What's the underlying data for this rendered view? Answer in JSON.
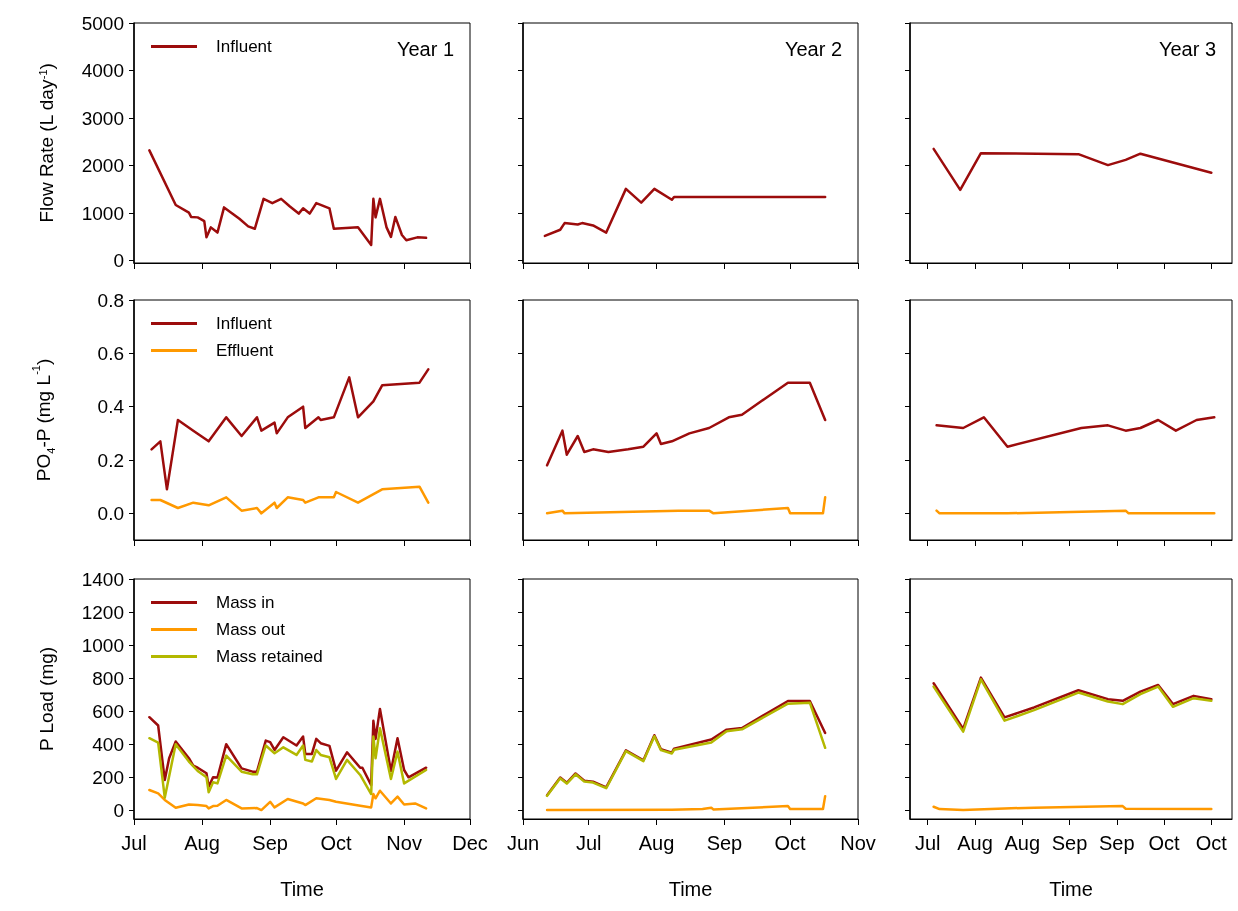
{
  "chart_data": [
    {
      "type": "line",
      "ylabel": "Flow Rate (L day$^{-1}$)",
      "annotations": [
        "Year 1"
      ],
      "legend": "top left",
      "marker": "none",
      "tick_labels": "y",
      "xlim": [
        "--07-01",
        "--12-01"
      ],
      "xticks": [
        {
          "value": "--07-01",
          "label": "Jul"
        },
        {
          "value": "--08-01",
          "label": "Aug"
        },
        {
          "value": "--09-01",
          "label": "Sep"
        },
        {
          "value": "--10-01",
          "label": "Oct"
        },
        {
          "value": "--11-01",
          "label": "Nov"
        },
        {
          "value": "--12-01",
          "label": "Dec"
        }
      ],
      "ylim": [
        -50,
        5000
      ],
      "yticks": [
        0,
        1000,
        2000,
        3000,
        4000,
        5000
      ],
      "series": [
        {
          "name": "Influent",
          "color": "#9c0c0c",
          "x": [
            "--07-08",
            "--07-20",
            "--07-26",
            "--07-27",
            "--07-30",
            "--08-02",
            "--08-03",
            "--08-05",
            "--08-08",
            "--08-11",
            "--08-18",
            "--08-22",
            "--08-25",
            "--08-29",
            "--09-02",
            "--09-06",
            "--09-10",
            "--09-14",
            "--09-16",
            "--09-19",
            "--09-22",
            "--09-28",
            "--09-30",
            "--10-11",
            "--10-17",
            "--10-18",
            "--10-19",
            "--10-21",
            "--10-24",
            "--10-26",
            "--10-28",
            "--10-31",
            "--11-02",
            "--11-07",
            "--11-11"
          ],
          "values": [
            2320,
            1170,
            1010,
            920,
            910,
            830,
            490,
            700,
            590,
            1120,
            880,
            720,
            670,
            1300,
            1210,
            1300,
            1140,
            990,
            1100,
            990,
            1210,
            1100,
            670,
            700,
            330,
            1300,
            910,
            1300,
            700,
            500,
            920,
            540,
            430,
            490,
            480
          ]
        }
      ]
    },
    {
      "type": "line",
      "annotations": [
        "Year 2"
      ],
      "marker": "none",
      "tick_labels": false,
      "xlim": [
        "--06-01",
        "--11-01"
      ],
      "xticks": [
        {
          "value": "--06-01",
          "label": "Jun"
        },
        {
          "value": "--07-01",
          "label": "Jul"
        },
        {
          "value": "--08-01",
          "label": "Aug"
        },
        {
          "value": "--09-01",
          "label": "Sep"
        },
        {
          "value": "--10-01",
          "label": "Oct"
        },
        {
          "value": "--11-01",
          "label": "Nov"
        }
      ],
      "ylim": [
        -50,
        5000
      ],
      "yticks": [
        0,
        1000,
        2000,
        3000,
        4000,
        5000
      ],
      "series": [
        {
          "color": "#9c0c0c",
          "x": [
            "--06-11",
            "--06-18",
            "--06-20",
            "--06-26",
            "--06-28",
            "--07-03",
            "--07-09",
            "--07-18",
            "--07-25",
            "--07-31",
            "--08-08",
            "--08-09",
            "--10-17"
          ],
          "values": [
            520,
            650,
            790,
            760,
            790,
            740,
            590,
            1510,
            1220,
            1510,
            1280,
            1340,
            1340
          ]
        }
      ]
    },
    {
      "type": "line",
      "annotations": [
        "Year 3"
      ],
      "marker": "none",
      "tick_labels": false,
      "xlim": [
        "--07-14",
        "--10-31"
      ],
      "xticks": [
        {
          "value": "--07-20",
          "label": "Jul"
        },
        {
          "value": "--08-05",
          "label": "Aug"
        },
        {
          "value": "--08-21",
          "label": "Aug"
        },
        {
          "value": "--09-06",
          "label": "Sep"
        },
        {
          "value": "--09-22",
          "label": "Sep"
        },
        {
          "value": "--10-08",
          "label": "Oct"
        },
        {
          "value": "--10-24",
          "label": "Oct"
        }
      ],
      "ylim": [
        -50,
        5000
      ],
      "yticks": [
        0,
        1000,
        2000,
        3000,
        4000,
        5000
      ],
      "series": [
        {
          "color": "#9c0c0c",
          "x": [
            "--07-22",
            "--07-31",
            "--08-07",
            "--09-09",
            "--09-19",
            "--09-25",
            "--09-30",
            "--10-24"
          ],
          "values": [
            2350,
            1490,
            2260,
            2240,
            2010,
            2120,
            2250,
            1850
          ]
        }
      ]
    },
    {
      "type": "line",
      "ylabel": "PO$_{4}$-P (mg L$^{-1}$)",
      "legend": "top left",
      "marker": "none",
      "tick_labels": "y",
      "xlim": [
        "--07-01",
        "--12-01"
      ],
      "xticks": [
        {
          "value": "--07-01",
          "label": "Jul"
        },
        {
          "value": "--08-01",
          "label": "Aug"
        },
        {
          "value": "--09-01",
          "label": "Sep"
        },
        {
          "value": "--10-01",
          "label": "Oct"
        },
        {
          "value": "--11-01",
          "label": "Nov"
        },
        {
          "value": "--12-01",
          "label": "Dec"
        }
      ],
      "ylim": [
        -0.1,
        0.8
      ],
      "yticks": [
        {
          "value": 0,
          "label": "0.0"
        },
        0.2,
        0.4,
        0.6,
        0.8
      ],
      "series": [
        {
          "name": "Influent",
          "color": "#9c0c0c",
          "x": [
            "--07-09",
            "--07-13",
            "--07-16",
            "--07-21",
            "--07-28",
            "--08-04",
            "--08-12",
            "--08-19",
            "--08-26",
            "--08-28",
            "--09-03",
            "--09-04",
            "--09-09",
            "--09-16",
            "--09-17",
            "--09-23",
            "--09-24",
            "--09-30",
            "--10-07",
            "--10-11",
            "--10-18",
            "--10-22",
            "--11-08",
            "--11-12"
          ],
          "values": [
            0.24,
            0.27,
            0.09,
            0.35,
            0.31,
            0.27,
            0.36,
            0.29,
            0.36,
            0.31,
            0.34,
            0.3,
            0.36,
            0.4,
            0.32,
            0.36,
            0.35,
            0.36,
            0.51,
            0.36,
            0.42,
            0.48,
            0.49,
            0.54
          ]
        },
        {
          "name": "Effluent",
          "color": "#ff9900",
          "x": [
            "--07-09",
            "--07-13",
            "--07-21",
            "--07-28",
            "--08-04",
            "--08-12",
            "--08-19",
            "--08-26",
            "--08-28",
            "--09-03",
            "--09-04",
            "--09-09",
            "--09-16",
            "--09-17",
            "--09-23",
            "--09-30",
            "--10-01",
            "--10-11",
            "--10-22",
            "--11-08",
            "--11-12"
          ],
          "values": [
            0.05,
            0.05,
            0.02,
            0.04,
            0.03,
            0.06,
            0.01,
            0.02,
            0.0,
            0.04,
            0.02,
            0.06,
            0.05,
            0.04,
            0.06,
            0.06,
            0.08,
            0.04,
            0.09,
            0.1,
            0.04
          ]
        }
      ]
    },
    {
      "type": "line",
      "marker": "none",
      "tick_labels": false,
      "xlim": [
        "--06-01",
        "--11-01"
      ],
      "xticks": [
        {
          "value": "--06-01",
          "label": "Jun"
        },
        {
          "value": "--07-01",
          "label": "Jul"
        },
        {
          "value": "--08-01",
          "label": "Aug"
        },
        {
          "value": "--09-01",
          "label": "Sep"
        },
        {
          "value": "--10-01",
          "label": "Oct"
        },
        {
          "value": "--11-01",
          "label": "Nov"
        }
      ],
      "ylim": [
        -0.1,
        0.8
      ],
      "yticks": [
        0,
        0.2,
        0.4,
        0.6,
        0.8
      ],
      "series": [
        {
          "color": "#9c0c0c",
          "x": [
            "--06-12",
            "--06-19",
            "--06-21",
            "--06-26",
            "--06-29",
            "--07-03",
            "--07-10",
            "--07-19",
            "--07-26",
            "--08-01",
            "--08-03",
            "--08-08",
            "--08-16",
            "--08-25",
            "--09-03",
            "--09-09",
            "--09-30",
            "--10-10",
            "--10-17"
          ],
          "values": [
            0.18,
            0.31,
            0.22,
            0.29,
            0.23,
            0.24,
            0.23,
            0.24,
            0.25,
            0.3,
            0.26,
            0.27,
            0.3,
            0.32,
            0.36,
            0.37,
            0.49,
            0.49,
            0.35
          ]
        },
        {
          "color": "#ff9900",
          "x": [
            "--06-12",
            "--06-19",
            "--06-20",
            "--08-11",
            "--08-17",
            "--08-25",
            "--08-27",
            "--09-30",
            "--10-01",
            "--10-16",
            "--10-17"
          ],
          "values": [
            0.0,
            0.01,
            0.0,
            0.01,
            0.01,
            0.01,
            0.0,
            0.02,
            0.0,
            0.0,
            0.06
          ]
        }
      ]
    },
    {
      "type": "line",
      "marker": "none",
      "tick_labels": false,
      "xlim": [
        "--07-14",
        "--10-31"
      ],
      "xticks": [
        {
          "value": "--07-20",
          "label": "Jul"
        },
        {
          "value": "--08-05",
          "label": "Aug"
        },
        {
          "value": "--08-21",
          "label": "Aug"
        },
        {
          "value": "--09-06",
          "label": "Sep"
        },
        {
          "value": "--09-22",
          "label": "Sep"
        },
        {
          "value": "--10-08",
          "label": "Oct"
        },
        {
          "value": "--10-24",
          "label": "Oct"
        }
      ],
      "ylim": [
        -0.1,
        0.8
      ],
      "yticks": [
        0,
        0.2,
        0.4,
        0.6,
        0.8
      ],
      "series": [
        {
          "color": "#9c0c0c",
          "x": [
            "--07-23",
            "--08-01",
            "--08-08",
            "--08-16",
            "--09-10",
            "--09-19",
            "--09-25",
            "--09-30",
            "--10-06",
            "--10-12",
            "--10-19",
            "--10-25"
          ],
          "values": [
            0.33,
            0.32,
            0.36,
            0.25,
            0.32,
            0.33,
            0.31,
            0.32,
            0.35,
            0.31,
            0.35,
            0.36
          ]
        },
        {
          "color": "#ff9900",
          "x": [
            "--07-23",
            "--07-24",
            "--08-16",
            "--09-25",
            "--09-26",
            "--10-25"
          ],
          "values": [
            0.01,
            0.0,
            0.0,
            0.01,
            0.0,
            0.0
          ]
        }
      ]
    },
    {
      "type": "line",
      "ylabel": "P Load (mg)",
      "xlabel": "Time",
      "legend": "top left",
      "marker": "none",
      "xlim": [
        "--07-01",
        "--12-01"
      ],
      "xticks": [
        {
          "value": "--07-01",
          "label": "Jul"
        },
        {
          "value": "--08-01",
          "label": "Aug"
        },
        {
          "value": "--09-01",
          "label": "Sep"
        },
        {
          "value": "--10-01",
          "label": "Oct"
        },
        {
          "value": "--11-01",
          "label": "Nov"
        },
        {
          "value": "--12-01",
          "label": "Dec"
        }
      ],
      "ylim": [
        -50,
        1400
      ],
      "yticks": [
        0,
        200,
        400,
        600,
        800,
        1000,
        1200,
        1400
      ],
      "series": [
        {
          "name": "Mass in",
          "color": "#9c0c0c",
          "x": [
            "--07-08",
            "--07-12",
            "--07-15",
            "--07-17",
            "--07-20",
            "--07-26",
            "--07-28",
            "--07-30",
            "--08-03",
            "--08-04",
            "--08-06",
            "--08-08",
            "--08-12",
            "--08-19",
            "--08-24",
            "--08-26",
            "--08-30",
            "--09-01",
            "--09-03",
            "--09-07",
            "--09-13",
            "--09-16",
            "--09-17",
            "--09-20",
            "--09-22",
            "--09-24",
            "--09-28",
            "--10-01",
            "--10-06",
            "--10-12",
            "--10-13",
            "--10-17",
            "--10-18",
            "--10-19",
            "--10-21",
            "--10-26",
            "--10-29",
            "--11-01",
            "--11-03",
            "--11-11"
          ],
          "values": [
            565,
            515,
            186,
            317,
            418,
            317,
            272,
            260,
            226,
            145,
            202,
            200,
            402,
            256,
            236,
            236,
            424,
            414,
            367,
            444,
            394,
            448,
            343,
            343,
            434,
            408,
            392,
            242,
            353,
            260,
            260,
            155,
            543,
            434,
            615,
            240,
            438,
            246,
            202,
            260
          ]
        },
        {
          "name": "Mass out",
          "color": "#ff9900",
          "x": [
            "--07-08",
            "--07-12",
            "--07-15",
            "--07-20",
            "--07-26",
            "--07-30",
            "--08-03",
            "--08-04",
            "--08-06",
            "--08-08",
            "--08-12",
            "--08-19",
            "--08-26",
            "--08-28",
            "--09-01",
            "--09-03",
            "--09-09",
            "--09-16",
            "--09-17",
            "--09-22",
            "--09-28",
            "--10-01",
            "--10-12",
            "--10-17",
            "--10-18",
            "--10-19",
            "--10-21",
            "--10-26",
            "--10-29",
            "--11-01",
            "--11-06",
            "--11-11"
          ],
          "values": [
            125,
            105,
            65,
            18,
            38,
            34,
            28,
            14,
            28,
            30,
            65,
            14,
            16,
            4,
            54,
            20,
            71,
            44,
            34,
            75,
            65,
            54,
            30,
            20,
            101,
            75,
            121,
            44,
            85,
            38,
            44,
            14
          ]
        },
        {
          "name": "Mass retained",
          "color": "#b3b800",
          "x": [
            "--07-08",
            "--07-12",
            "--07-15",
            "--07-20",
            "--07-26",
            "--07-30",
            "--08-03",
            "--08-04",
            "--08-06",
            "--08-08",
            "--08-12",
            "--08-19",
            "--08-24",
            "--08-26",
            "--08-30",
            "--09-03",
            "--09-07",
            "--09-13",
            "--09-16",
            "--09-17",
            "--09-20",
            "--09-22",
            "--09-24",
            "--09-28",
            "--10-01",
            "--10-06",
            "--10-12",
            "--10-17",
            "--10-18",
            "--10-19",
            "--10-21",
            "--10-26",
            "--10-29",
            "--11-01",
            "--11-11"
          ],
          "values": [
            438,
            412,
            79,
            402,
            297,
            240,
            202,
            111,
            172,
            165,
            333,
            236,
            220,
            220,
            394,
            347,
            383,
            337,
            394,
            307,
            297,
            367,
            337,
            323,
            192,
            307,
            216,
            101,
            448,
            317,
            498,
            192,
            357,
            165,
            246
          ]
        }
      ]
    },
    {
      "type": "line",
      "xlabel": "Time",
      "marker": "none",
      "tick_labels": "x",
      "xlim": [
        "--06-01",
        "--11-01"
      ],
      "xticks": [
        {
          "value": "--06-01",
          "label": "Jun"
        },
        {
          "value": "--07-01",
          "label": "Jul"
        },
        {
          "value": "--08-01",
          "label": "Aug"
        },
        {
          "value": "--09-01",
          "label": "Sep"
        },
        {
          "value": "--10-01",
          "label": "Oct"
        },
        {
          "value": "--11-01",
          "label": "Nov"
        }
      ],
      "ylim": [
        -50,
        1400
      ],
      "yticks": [
        0,
        200,
        400,
        600,
        800,
        1000,
        1200,
        1400
      ],
      "series": [
        {
          "color": "#9c0c0c",
          "x": [
            "--06-12",
            "--06-18",
            "--06-21",
            "--06-25",
            "--06-29",
            "--07-03",
            "--07-09",
            "--07-18",
            "--07-26",
            "--07-31",
            "--08-03",
            "--08-08",
            "--08-09",
            "--08-26",
            "--09-02",
            "--09-09",
            "--09-30",
            "--10-10",
            "--10-17"
          ],
          "values": [
            94,
            201,
            169,
            225,
            181,
            175,
            141,
            365,
            305,
            456,
            371,
            351,
            375,
            430,
            490,
            500,
            663,
            663,
            470
          ]
        },
        {
          "color": "#ff9900",
          "x": [
            "--06-12",
            "--08-08",
            "--08-22",
            "--08-26",
            "--08-27",
            "--09-30",
            "--10-01",
            "--10-16",
            "--10-17"
          ],
          "values": [
            4,
            6,
            10,
            18,
            8,
            28,
            10,
            10,
            88
          ]
        },
        {
          "color": "#b3b800",
          "x": [
            "--06-12",
            "--06-18",
            "--06-21",
            "--06-25",
            "--06-29",
            "--07-03",
            "--07-09",
            "--07-18",
            "--07-26",
            "--07-31",
            "--08-03",
            "--08-08",
            "--08-09",
            "--08-26",
            "--09-02",
            "--09-09",
            "--09-30",
            "--10-10",
            "--10-17"
          ],
          "values": [
            90,
            196,
            164,
            220,
            176,
            170,
            136,
            360,
            300,
            450,
            366,
            346,
            368,
            412,
            480,
            492,
            647,
            653,
            380
          ]
        }
      ]
    },
    {
      "type": "line",
      "xlabel": "Time",
      "marker": "none",
      "tick_labels": "x",
      "xlim": [
        "--07-14",
        "--10-31"
      ],
      "xticks": [
        {
          "value": "--07-20",
          "label": "Jul"
        },
        {
          "value": "--08-05",
          "label": "Aug"
        },
        {
          "value": "--08-21",
          "label": "Aug"
        },
        {
          "value": "--09-06",
          "label": "Sep"
        },
        {
          "value": "--09-22",
          "label": "Sep"
        },
        {
          "value": "--10-08",
          "label": "Oct"
        },
        {
          "value": "--10-24",
          "label": "Oct"
        }
      ],
      "ylim": [
        -50,
        1400
      ],
      "yticks": [
        0,
        200,
        400,
        600,
        800,
        1000,
        1200,
        1400
      ],
      "series": [
        {
          "color": "#9c0c0c",
          "x": [
            "--07-22",
            "--08-01",
            "--08-07",
            "--08-15",
            "--08-25",
            "--09-09",
            "--09-19",
            "--09-24",
            "--09-30",
            "--10-06",
            "--10-11",
            "--10-18",
            "--10-24"
          ],
          "values": [
            770,
            494,
            804,
            564,
            624,
            728,
            674,
            664,
            720,
            760,
            644,
            694,
            674
          ]
        },
        {
          "color": "#ff9900",
          "x": [
            "--07-22",
            "--07-24",
            "--08-01",
            "--08-15",
            "--08-25",
            "--09-24",
            "--09-25",
            "--10-24"
          ],
          "values": [
            24,
            10,
            4,
            14,
            18,
            28,
            12,
            10
          ]
        },
        {
          "color": "#b3b800",
          "x": [
            "--07-22",
            "--08-01",
            "--08-07",
            "--08-15",
            "--08-25",
            "--09-09",
            "--09-19",
            "--09-24",
            "--09-30",
            "--10-06",
            "--10-11",
            "--10-18",
            "--10-24"
          ],
          "values": [
            750,
            478,
            794,
            544,
            608,
            714,
            660,
            644,
            704,
            750,
            628,
            680,
            664
          ]
        }
      ]
    }
  ]
}
